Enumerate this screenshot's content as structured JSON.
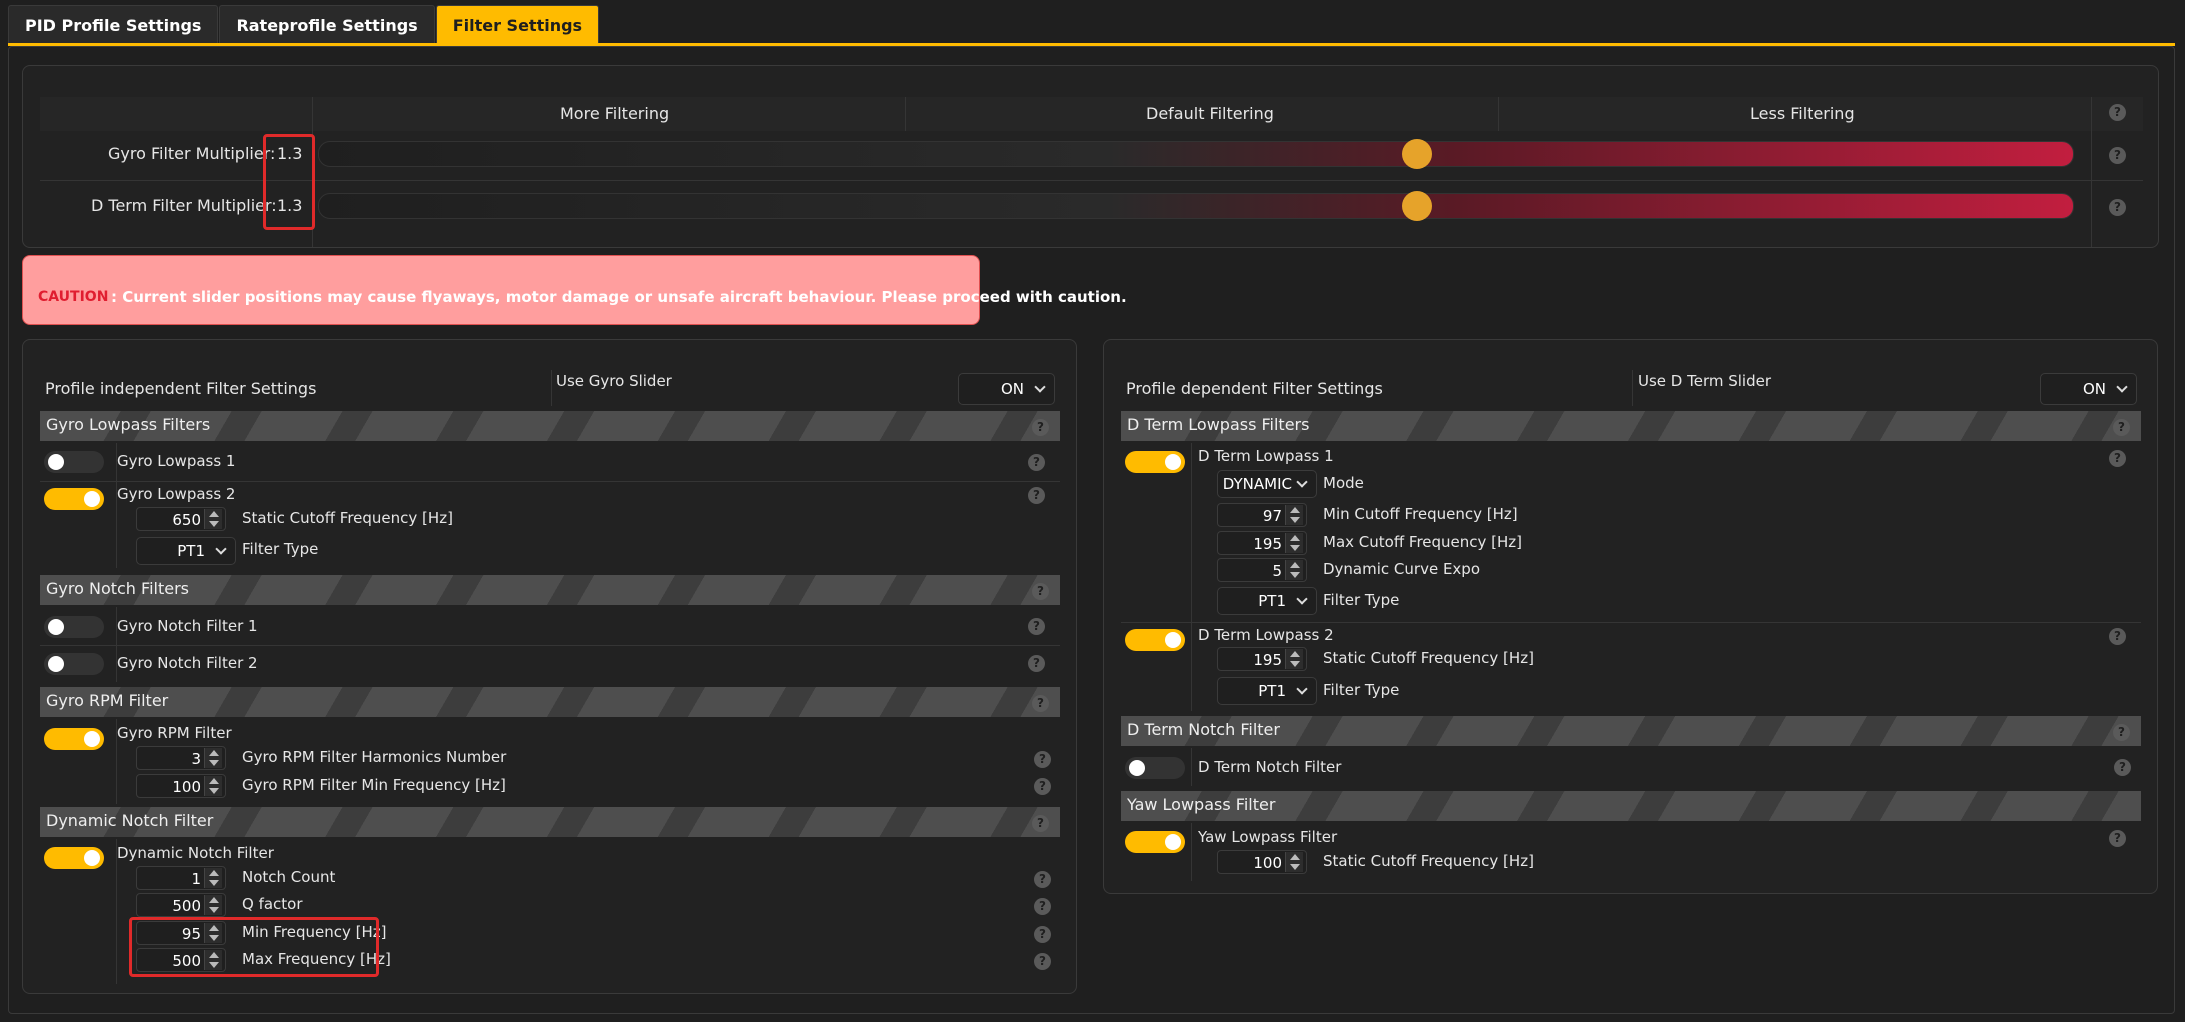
{
  "tabs": [
    {
      "label": "PID Profile Settings"
    },
    {
      "label": "Rateprofile Settings"
    },
    {
      "label": "Filter Settings"
    }
  ],
  "sliders": {
    "col_more": "More Filtering",
    "col_default": "Default Filtering",
    "col_less": "Less Filtering",
    "gyro_label": "Gyro Filter Multiplier:",
    "gyro_value": "1.3",
    "gyro_level": 0.62,
    "dterm_label": "D Term Filter Multiplier:",
    "dterm_value": "1.3",
    "dterm_level": 0.62
  },
  "caution": {
    "label": "CAUTION",
    "text": ": Current slider positions may cause flyaways, motor damage or unsafe aircraft behaviour. Please proceed with caution."
  },
  "left": {
    "title": "Profile independent Filter Settings",
    "slider_label": "Use Gyro Slider",
    "slider_value": "ON",
    "lowpass": {
      "header": "Gyro Lowpass Filters",
      "lp1": "Gyro Lowpass 1",
      "lp2": "Gyro Lowpass 2",
      "cutoff": "650",
      "cutoff_label": "Static Cutoff Frequency [Hz]",
      "type": "PT1",
      "type_label": "Filter Type"
    },
    "notch": {
      "header": "Gyro Notch Filters",
      "n1": "Gyro Notch Filter 1",
      "n2": "Gyro Notch Filter 2"
    },
    "rpm": {
      "header": "Gyro RPM Filter",
      "label": "Gyro RPM Filter",
      "harm": "3",
      "harm_label": "Gyro RPM Filter Harmonics Number",
      "minf": "100",
      "minf_label": "Gyro RPM Filter Min Frequency [Hz]"
    },
    "dyn": {
      "header": "Dynamic Notch Filter",
      "label": "Dynamic Notch Filter",
      "count": "1",
      "count_label": "Notch Count",
      "q": "500",
      "q_label": "Q factor",
      "minf": "95",
      "minf_label": "Min Frequency [Hz]",
      "maxf": "500",
      "maxf_label": "Max Frequency [Hz]"
    }
  },
  "right": {
    "title": "Profile dependent Filter Settings",
    "slider_label": "Use D Term Slider",
    "slider_value": "ON",
    "lowpass": {
      "header": "D Term Lowpass Filters",
      "lp1": "D Term Lowpass 1",
      "mode": "DYNAMIC",
      "mode_label": "Mode",
      "minc": "97",
      "minc_label": "Min Cutoff Frequency [Hz]",
      "maxc": "195",
      "maxc_label": "Max Cutoff Frequency [Hz]",
      "expo": "5",
      "expo_label": "Dynamic Curve Expo",
      "type1": "PT1",
      "type_label": "Filter Type",
      "lp2": "D Term Lowpass 2",
      "cutoff2": "195",
      "cutoff2_label": "Static Cutoff Frequency [Hz]",
      "type2": "PT1"
    },
    "notch": {
      "header": "D Term Notch Filter",
      "label": "D Term Notch Filter"
    },
    "yaw": {
      "header": "Yaw Lowpass Filter",
      "label": "Yaw Lowpass Filter",
      "cutoff": "100",
      "cutoff_label": "Static Cutoff Frequency [Hz]"
    }
  },
  "help_glyph": "?"
}
